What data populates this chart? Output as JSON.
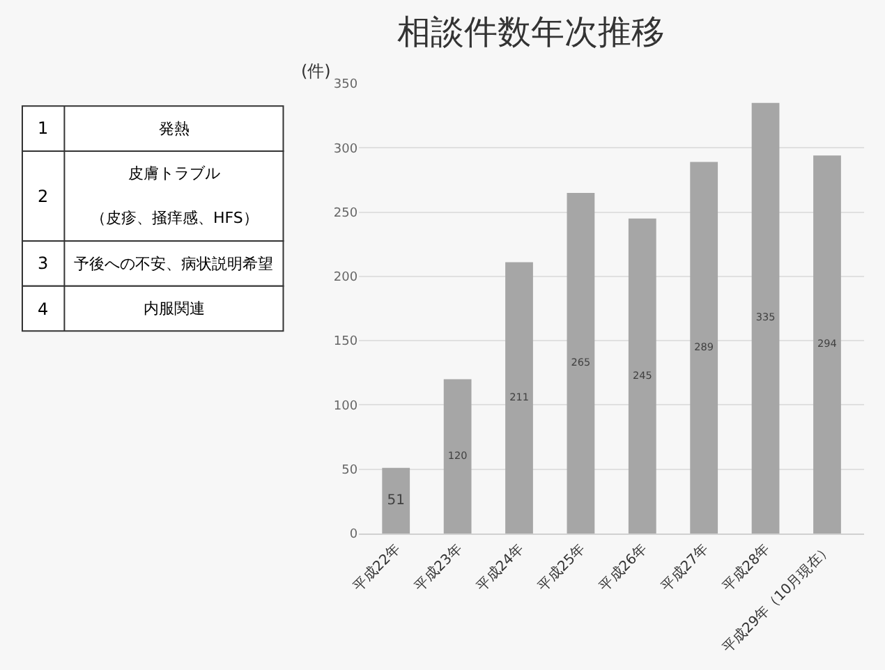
{
  "chart_data": {
    "type": "bar",
    "title": "相談件数年次推移",
    "ylabel": "(件)",
    "categories": [
      "平成22年",
      "平成23年",
      "平成24年",
      "平成25年",
      "平成26年",
      "平成27年",
      "平成28年",
      "平成29年（10月現在）"
    ],
    "values": [
      51,
      120,
      211,
      265,
      245,
      289,
      335,
      294
    ],
    "color": "#a6a6a6",
    "ylim": [
      0,
      350
    ],
    "yticks": [
      0,
      50,
      100,
      150,
      200,
      250,
      300,
      350
    ],
    "grid": "y",
    "data_labels": true,
    "annotations": [
      "1",
      "発熱",
      "2",
      "皮膚トラブル",
      "（皮疹、掻痒感、HFS）",
      "3",
      "予後への不安、病状説明希望",
      "4",
      "内服関連"
    ]
  }
}
